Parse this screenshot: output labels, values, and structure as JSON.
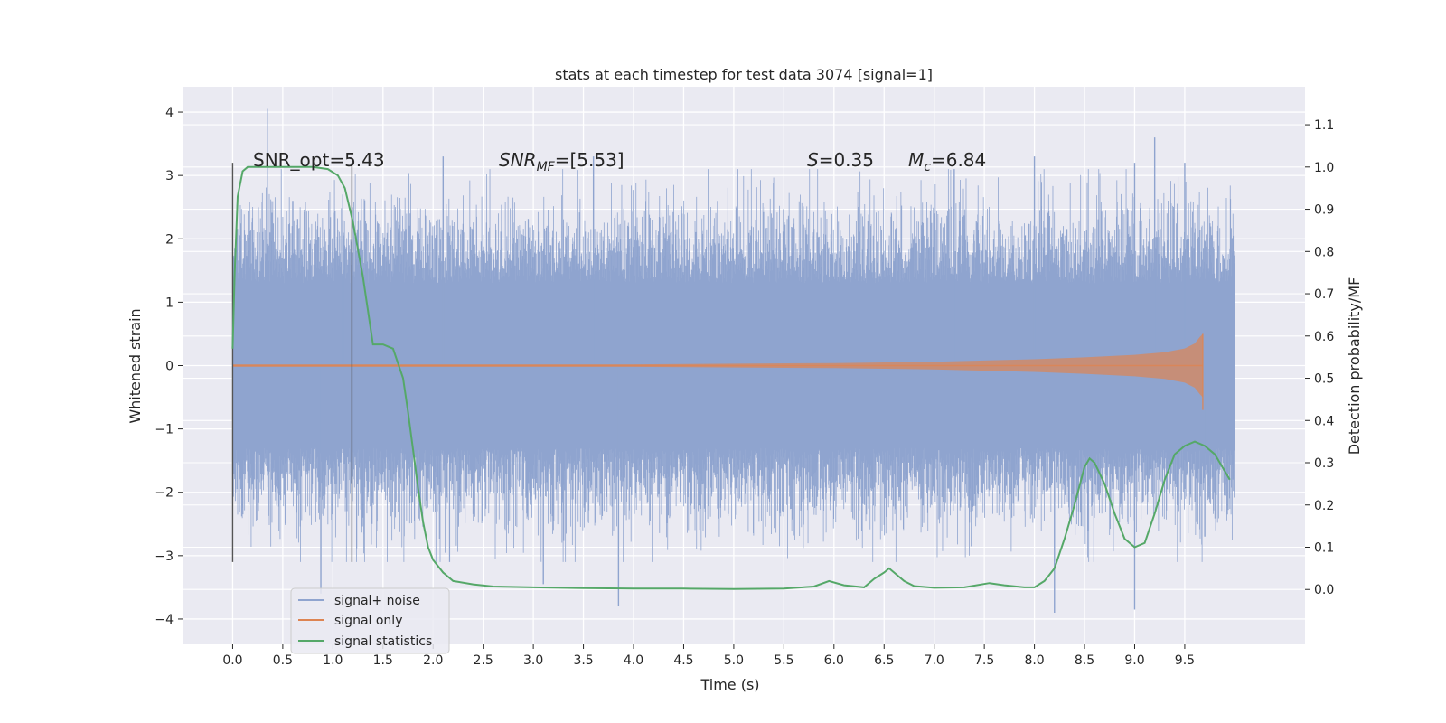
{
  "chart_data": {
    "type": "line",
    "title": "stats at each timestep for test data 3074 [signal=1]",
    "xlabel": "Time (s)",
    "ylabel": "Whitened strain",
    "y2label": "Detection probability/MF",
    "xlim": [
      -0.5,
      10.7
    ],
    "ylim": [
      -4.4,
      4.4
    ],
    "y2lim": [
      -0.13,
      1.19
    ],
    "x_ticks": [
      "0.0",
      "0.5",
      "1.0",
      "1.5",
      "2.0",
      "2.5",
      "3.0",
      "3.5",
      "4.0",
      "4.5",
      "5.0",
      "5.5",
      "6.0",
      "6.5",
      "7.0",
      "7.5",
      "8.0",
      "8.5",
      "9.0",
      "9.5"
    ],
    "y_ticks": [
      "4",
      "3",
      "2",
      "1",
      "0",
      "−1",
      "−2",
      "−3",
      "−4"
    ],
    "y2_ticks": [
      "1.1",
      "1.0",
      "0.9",
      "0.8",
      "0.7",
      "0.6",
      "0.5",
      "0.4",
      "0.3",
      "0.2",
      "0.1",
      "0.0"
    ],
    "grid": true,
    "legend_position": "lower-left",
    "annotations": {
      "snr_opt": "SNR_opt=5.43",
      "snr_mf_base": "SNR",
      "snr_mf_sub": "MF",
      "snr_mf_rest": "=[5.53]",
      "s_sym": "S",
      "s_rest": "=0.35",
      "mc_sym": "M",
      "mc_sub": "c",
      "mc_rest": "=6.84"
    },
    "vertical_lines": {
      "x": [
        0.0,
        1.19
      ],
      "ymin": -3.1,
      "ymax": 3.2
    },
    "noise_envelope": {
      "x": [
        0.0,
        10.0
      ],
      "core_amplitude": 1.3,
      "peaks_upper": [
        [
          0.35,
          4.05
        ],
        [
          0.6,
          2.6
        ],
        [
          1.1,
          2.3
        ],
        [
          2.1,
          3.3
        ],
        [
          3.6,
          3.3
        ],
        [
          7.2,
          3.1
        ],
        [
          8.0,
          3.3
        ],
        [
          9.0,
          3.2
        ],
        [
          9.2,
          3.6
        ],
        [
          9.5,
          3.2
        ]
      ],
      "peaks_lower": [
        [
          0.88,
          -3.6
        ],
        [
          3.1,
          -3.45
        ],
        [
          3.85,
          -3.8
        ],
        [
          8.2,
          -3.9
        ],
        [
          9.0,
          -3.85
        ],
        [
          9.7,
          -2.7
        ]
      ]
    },
    "series": [
      {
        "name": "signal+ noise",
        "color": "#8fa4cf",
        "axis": "left"
      },
      {
        "name": "signal only",
        "color": "#dd8452",
        "axis": "left",
        "envelope_x": [
          0.0,
          2.0,
          4.0,
          5.0,
          6.0,
          7.0,
          7.5,
          8.0,
          8.5,
          9.0,
          9.3,
          9.5,
          9.6,
          9.65,
          9.68
        ],
        "envelope_amp": [
          0.02,
          0.02,
          0.02,
          0.03,
          0.04,
          0.06,
          0.08,
          0.1,
          0.13,
          0.17,
          0.21,
          0.27,
          0.35,
          0.45,
          0.5
        ]
      },
      {
        "name": "signal statistics",
        "color": "#55a868",
        "axis": "right",
        "x": [
          0.0,
          0.02,
          0.05,
          0.1,
          0.15,
          0.25,
          0.4,
          0.6,
          0.8,
          0.95,
          1.05,
          1.12,
          1.2,
          1.3,
          1.4,
          1.5,
          1.6,
          1.7,
          1.75,
          1.8,
          1.85,
          1.9,
          1.95,
          2.0,
          2.1,
          2.2,
          2.4,
          2.6,
          3.0,
          3.5,
          4.0,
          4.5,
          5.0,
          5.5,
          5.8,
          5.95,
          6.1,
          6.3,
          6.4,
          6.5,
          6.55,
          6.6,
          6.7,
          6.8,
          7.0,
          7.3,
          7.55,
          7.7,
          7.9,
          8.0,
          8.1,
          8.2,
          8.3,
          8.4,
          8.5,
          8.55,
          8.6,
          8.7,
          8.8,
          8.9,
          9.0,
          9.1,
          9.2,
          9.3,
          9.4,
          9.5,
          9.6,
          9.7,
          9.8,
          9.9,
          9.95
        ],
        "y": [
          0.57,
          0.75,
          0.93,
          0.99,
          1.0,
          1.0,
          1.0,
          1.0,
          1.0,
          0.995,
          0.98,
          0.95,
          0.87,
          0.74,
          0.58,
          0.58,
          0.57,
          0.5,
          0.42,
          0.33,
          0.24,
          0.16,
          0.1,
          0.07,
          0.04,
          0.02,
          0.012,
          0.007,
          0.005,
          0.003,
          0.002,
          0.002,
          0.001,
          0.002,
          0.007,
          0.02,
          0.01,
          0.005,
          0.025,
          0.04,
          0.05,
          0.04,
          0.02,
          0.008,
          0.004,
          0.005,
          0.015,
          0.01,
          0.005,
          0.005,
          0.02,
          0.05,
          0.12,
          0.2,
          0.29,
          0.31,
          0.3,
          0.25,
          0.18,
          0.12,
          0.1,
          0.11,
          0.18,
          0.26,
          0.32,
          0.34,
          0.35,
          0.34,
          0.32,
          0.28,
          0.26
        ]
      }
    ]
  }
}
